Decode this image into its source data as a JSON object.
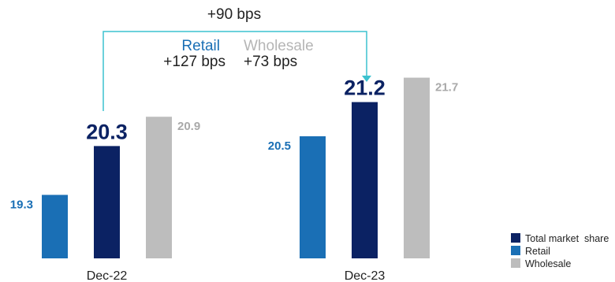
{
  "chart_data": {
    "type": "bar",
    "categories": [
      "Dec-22",
      "Dec-23"
    ],
    "series": [
      {
        "name": "Retail",
        "values": [
          19.3,
          20.5
        ],
        "color": "#1a6fb5",
        "label_color": "#1a6fb5"
      },
      {
        "name": "Total market  share",
        "values": [
          20.3,
          21.2
        ],
        "color": "#0b2263",
        "label_color": "#0b2263"
      },
      {
        "name": "Wholesale",
        "values": [
          20.9,
          21.7
        ],
        "color": "#bdbdbd",
        "label_color": "#a9a9a9"
      }
    ],
    "data_labels": [
      [
        "19.3",
        "20.5"
      ],
      [
        "20.3",
        "21.2"
      ],
      [
        "20.9",
        "21.7"
      ]
    ],
    "legend": [
      "Total market  share",
      "Retail",
      "Wholesale"
    ],
    "legend_position": "bottom-right",
    "annotations": {
      "total_change": "+90 bps",
      "retail_label": "Retail",
      "retail_change": "+127 bps",
      "wholesale_label": "Wholesale",
      "wholesale_change": "+73 bps"
    },
    "axis_baseline": 18.0,
    "grid": false
  }
}
